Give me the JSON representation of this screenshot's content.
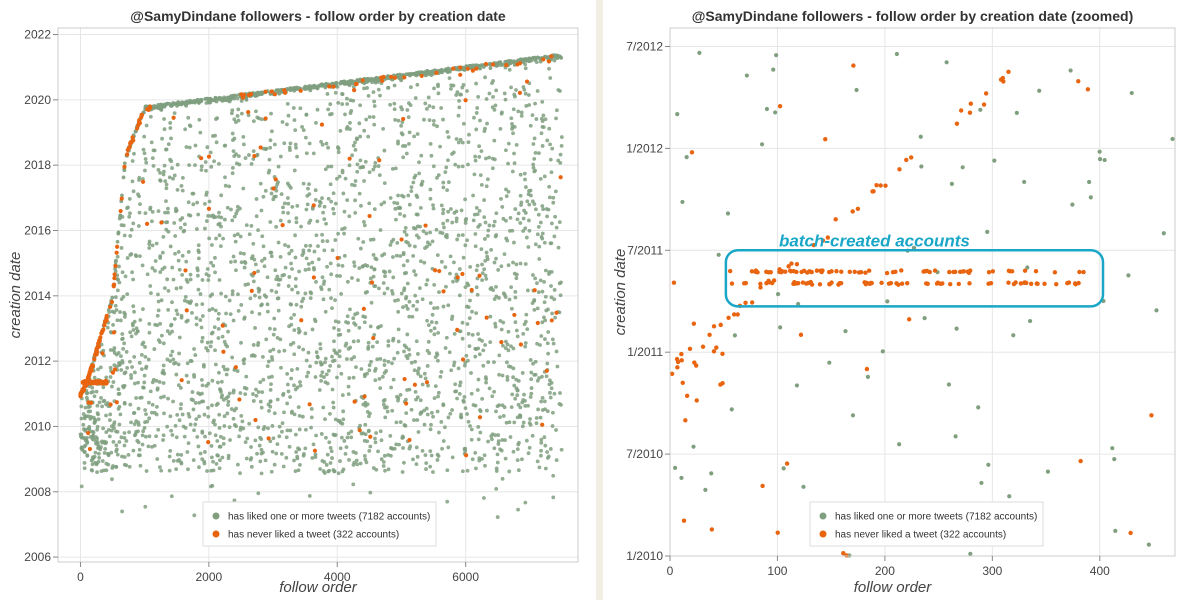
{
  "colors": {
    "liked": "#7f9f7f",
    "never_liked": "#e9640f",
    "annotation": "#1aa7c7",
    "grid": "#e6e6e6"
  },
  "chart_data": [
    {
      "type": "scatter",
      "title": "@SamyDindane followers - follow order by creation date",
      "xlabel": "follow order",
      "ylabel": "creation date",
      "xlim": [
        -350,
        7750
      ],
      "ylim": [
        2005.85,
        2022.2
      ],
      "x_ticks": [
        "0",
        "2000",
        "4000",
        "6000"
      ],
      "y_ticks": [
        "2006",
        "2008",
        "2010",
        "2012",
        "2014",
        "2016",
        "2018",
        "2020",
        "2022"
      ],
      "grid": true,
      "legend_position": "bottom-center",
      "series": [
        {
          "name": "has liked one or more tweets (7182 accounts)",
          "color": "#7f9f7f",
          "description_points": [
            [
              20,
              2010.5
            ],
            [
              300,
              2011.9
            ],
            [
              700,
              2018.5
            ],
            [
              900,
              2019.7
            ],
            [
              2000,
              2019.9
            ],
            [
              4000,
              2020.3
            ],
            [
              6000,
              2020.8
            ],
            [
              7500,
              2021.4
            ]
          ]
        },
        {
          "name": "has never liked a tweet (322 accounts)",
          "color": "#e9640f",
          "description_points": [
            [
              50,
              2010.9
            ],
            [
              100,
              2011.4
            ],
            [
              200,
              2011.4
            ],
            [
              300,
              2011.4
            ],
            [
              400,
              2011.4
            ],
            [
              450,
              2014.0
            ],
            [
              550,
              2016.5
            ],
            [
              650,
              2019.2
            ]
          ]
        }
      ]
    },
    {
      "type": "scatter",
      "title": "@SamyDindane followers - follow order by creation date (zoomed)",
      "xlabel": "follow order",
      "ylabel": "creation date",
      "xlim": [
        0,
        470
      ],
      "ylim": [
        "1/2010",
        "7/2012"
      ],
      "x_ticks": [
        "0",
        "100",
        "200",
        "300",
        "400"
      ],
      "y_ticks": [
        "1/2010",
        "7/2010",
        "1/2011",
        "7/2011",
        "1/2012",
        "7/2012"
      ],
      "grid": true,
      "legend_position": "bottom-center",
      "annotation": "batch-created accounts",
      "series": [
        {
          "name": "has liked one or more tweets (7182 accounts)",
          "color": "#7f9f7f"
        },
        {
          "name": "has never liked a tweet (322 accounts)",
          "color": "#e9640f"
        }
      ]
    }
  ]
}
